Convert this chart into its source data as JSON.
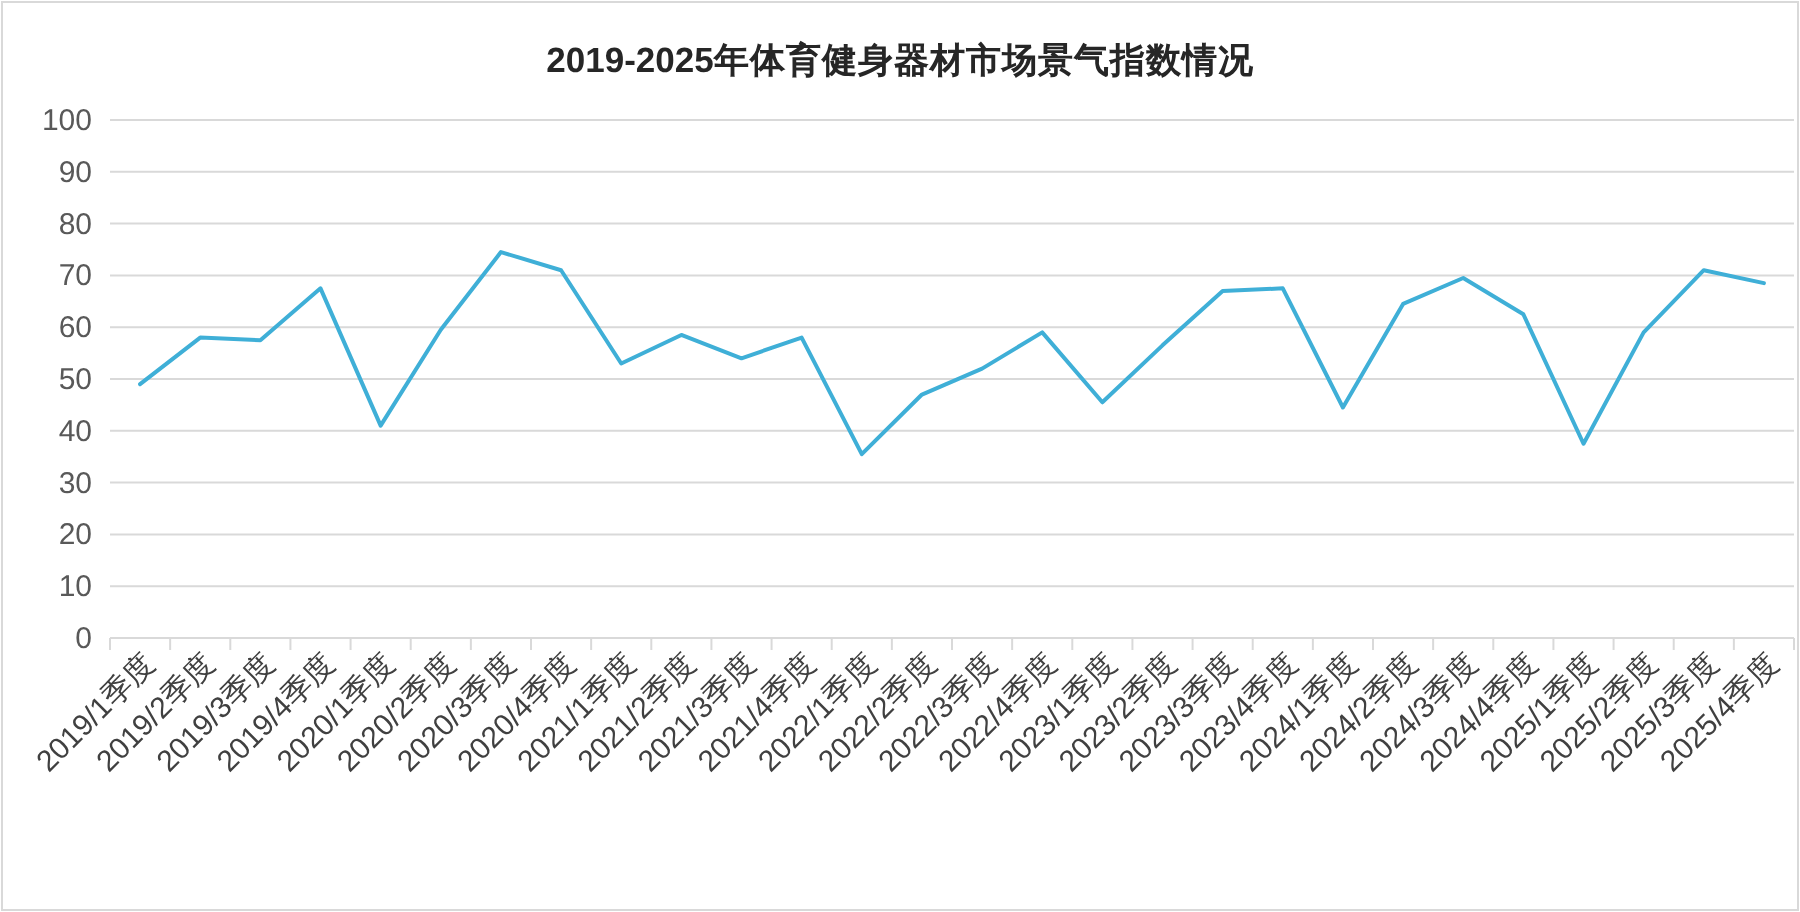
{
  "chart_data": {
    "type": "line",
    "title": "2019-2025年体育健身器材市场景气指数情况",
    "categories": [
      "2019/1季度",
      "2019/2季度",
      "2019/3季度",
      "2019/4季度",
      "2020/1季度",
      "2020/2季度",
      "2020/3季度",
      "2020/4季度",
      "2021/1季度",
      "2021/2季度",
      "2021/3季度",
      "2021/4季度",
      "2022/1季度",
      "2022/2季度",
      "2022/3季度",
      "2022/4季度",
      "2023/1季度",
      "2023/2季度",
      "2023/3季度",
      "2023/4季度",
      "2024/1季度",
      "2024/2季度",
      "2024/3季度",
      "2024/4季度",
      "2025/1季度",
      "2025/2季度",
      "2025/3季度",
      "2025/4季度"
    ],
    "series": [
      {
        "color": "#3fafd7",
        "values": [
          49,
          58,
          57.5,
          67.5,
          41,
          59.5,
          74.5,
          71,
          53,
          58.5,
          54,
          58,
          35.5,
          47,
          52,
          59,
          45.5,
          56.5,
          67,
          67.5,
          44.5,
          64.5,
          69.5,
          62.5,
          37.5,
          59,
          71,
          68.5
        ]
      }
    ],
    "ylim": [
      0,
      100
    ],
    "yticks": [
      0,
      10,
      20,
      30,
      40,
      50,
      60,
      70,
      80,
      90,
      100
    ],
    "grid": "y"
  }
}
